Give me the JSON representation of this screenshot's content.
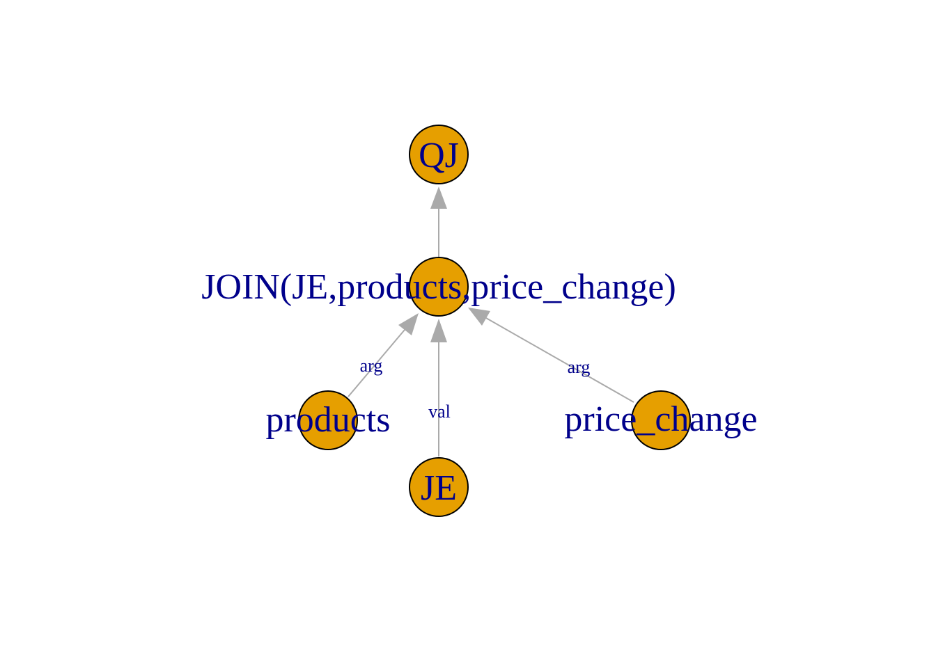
{
  "diagram": {
    "colors": {
      "node_fill": "#e69f00",
      "node_stroke": "#000000",
      "edge": "#aaaaaa",
      "label": "#00008b"
    },
    "nodes": {
      "qj": "QJ",
      "join": "JOIN(JE,products,price_change)",
      "products": "products",
      "je": "JE",
      "price_change": "price_change"
    },
    "edges": [
      {
        "from": "join",
        "to": "qj",
        "label": ""
      },
      {
        "from": "products",
        "to": "join",
        "label": "arg"
      },
      {
        "from": "je",
        "to": "join",
        "label": "val"
      },
      {
        "from": "price_change",
        "to": "join",
        "label": "arg"
      }
    ]
  }
}
